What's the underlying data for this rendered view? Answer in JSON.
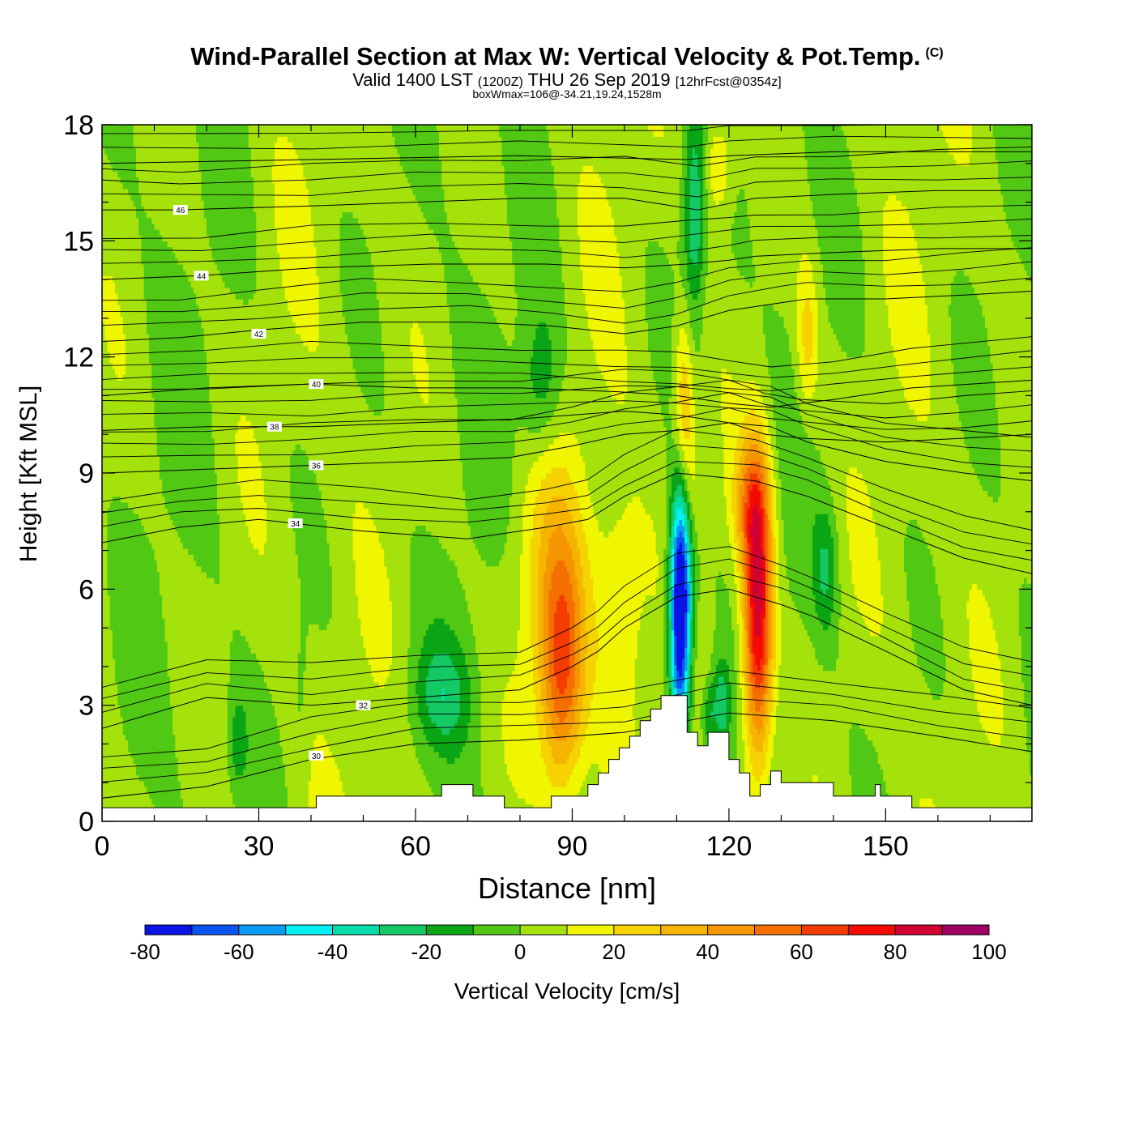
{
  "title": {
    "main": "Wind-Parallel Section at Max W: Vertical Velocity & Pot.Temp.",
    "copyright": "(C)",
    "valid_prefix": "Valid 1400 LST",
    "valid_utc": "(1200Z)",
    "valid_date": "THU 26 Sep 2019",
    "forecast_info": "[12hrFcst@0354z]",
    "box_info": "boxWmax=106@-34.21,19.24,1528m"
  },
  "chart_data": {
    "type": "heatmap",
    "xlabel": "Distance [nm]",
    "ylabel": "Height [Kft MSL]",
    "xlim": [
      0,
      178
    ],
    "ylim": [
      0,
      18
    ],
    "x_ticks": [
      0,
      30,
      60,
      90,
      120,
      150
    ],
    "y_ticks": [
      0,
      3,
      6,
      9,
      12,
      15,
      18
    ],
    "colorbar": {
      "label": "Vertical Velocity [cm/s]",
      "ticks": [
        -80,
        -60,
        -40,
        -20,
        0,
        20,
        40,
        60,
        80,
        100
      ],
      "levels": [
        -80,
        -70,
        -60,
        -50,
        -40,
        -30,
        -20,
        -10,
        0,
        10,
        20,
        30,
        40,
        50,
        60,
        70,
        80,
        90,
        100
      ],
      "colors": [
        "#0a14e6",
        "#0a55f0",
        "#0a9bf5",
        "#05f0f5",
        "#05dcaa",
        "#14c864",
        "#0aa514",
        "#50c814",
        "#a5e10a",
        "#f0f500",
        "#f5d200",
        "#f5b400",
        "#f59600",
        "#f56e00",
        "#f53c00",
        "#f50a00",
        "#d20032",
        "#a00064"
      ]
    },
    "theta_contours": [
      {
        "label": "30",
        "label_x": 41,
        "label_y": 1.7,
        "x": [
          0,
          20,
          40,
          60,
          80,
          100,
          120,
          140,
          160,
          178
        ],
        "y": [
          0.6,
          0.9,
          1.6,
          2.0,
          2.1,
          2.3,
          2.8,
          2.6,
          2.2,
          1.8
        ]
      },
      {
        "label": "32",
        "label_x": 50,
        "label_y": 3.0,
        "x": [
          0,
          20,
          40,
          60,
          80,
          90,
          95,
          100,
          110,
          120,
          130,
          136,
          150,
          165,
          178
        ],
        "y": [
          2.4,
          3.2,
          3.0,
          3.2,
          3.4,
          4.0,
          4.4,
          5.0,
          5.8,
          6.0,
          5.6,
          5.3,
          4.4,
          3.4,
          3.0
        ]
      },
      {
        "label": "34",
        "label_x": 37,
        "label_y": 7.7,
        "x": [
          0,
          15,
          30,
          50,
          70,
          85,
          93,
          100,
          110,
          125,
          135,
          150,
          165,
          178
        ],
        "y": [
          7.2,
          7.6,
          7.8,
          7.5,
          7.3,
          7.6,
          7.8,
          8.4,
          9.0,
          8.8,
          8.4,
          7.6,
          6.8,
          6.4
        ]
      },
      {
        "label": "36",
        "label_x": 41,
        "label_y": 9.2,
        "x": [
          0,
          20,
          40,
          60,
          78,
          90,
          100,
          110,
          120,
          128,
          135,
          150,
          165,
          178
        ],
        "y": [
          9.0,
          9.1,
          9.2,
          9.3,
          9.4,
          9.7,
          10.0,
          10.1,
          10.3,
          10.2,
          9.8,
          9.3,
          9.0,
          8.8
        ]
      },
      {
        "label": "38",
        "label_x": 33,
        "label_y": 10.2,
        "x": [
          0,
          20,
          40,
          60,
          80,
          100,
          110,
          120,
          127,
          134,
          150,
          165,
          178
        ],
        "y": [
          10.1,
          10.2,
          10.2,
          10.3,
          10.4,
          10.6,
          10.5,
          10.3,
          10.0,
          9.9,
          9.8,
          9.9,
          10.0
        ]
      },
      {
        "label": "40",
        "label_x": 41,
        "label_y": 11.3,
        "x": [
          0,
          20,
          40,
          60,
          80,
          99,
          110,
          120,
          128,
          140,
          155,
          178
        ],
        "y": [
          11.0,
          11.2,
          11.3,
          11.2,
          11.2,
          11.1,
          11.0,
          10.8,
          10.7,
          10.9,
          11.2,
          11.4
        ]
      },
      {
        "label": "42",
        "label_x": 30,
        "label_y": 12.6,
        "x": [
          0,
          15,
          30,
          50,
          70,
          86,
          100,
          110,
          120,
          130,
          135,
          150,
          165,
          178
        ],
        "y": [
          12.4,
          12.5,
          12.7,
          12.9,
          12.9,
          12.8,
          12.6,
          12.8,
          13.2,
          13.4,
          13.5,
          13.5,
          13.6,
          13.7
        ]
      },
      {
        "label": "44",
        "label_x": 19,
        "label_y": 14.1,
        "x": [
          0,
          19,
          40,
          63,
          85,
          100,
          112,
          120,
          125,
          140,
          160,
          178
        ],
        "y": [
          14.0,
          14.1,
          14.3,
          14.4,
          14.4,
          14.3,
          14.4,
          14.5,
          14.6,
          14.7,
          14.8,
          14.8
        ]
      },
      {
        "label": "46",
        "label_x": 15,
        "label_y": 15.8,
        "x": [
          0,
          15,
          40,
          60,
          80,
          100,
          114,
          125,
          140,
          160,
          178
        ],
        "y": [
          15.8,
          15.8,
          15.9,
          16.0,
          16.1,
          16.1,
          15.8,
          16.1,
          16.2,
          16.3,
          16.3
        ]
      },
      {
        "label": "",
        "label_x": 0,
        "label_y": 0,
        "x": [
          0,
          40,
          80,
          112,
          120,
          140,
          178
        ],
        "y": [
          17.0,
          17.1,
          17.2,
          17.1,
          17.2,
          17.3,
          17.3
        ]
      }
    ],
    "terrain": {
      "x": [
        0,
        41,
        41,
        60,
        60,
        65,
        65,
        71,
        71,
        77,
        77,
        86,
        86,
        90,
        90,
        93,
        93,
        95,
        95,
        97,
        97,
        99,
        99,
        101,
        101,
        103,
        103,
        105,
        105,
        107,
        107,
        112,
        112,
        114,
        114,
        116,
        116,
        120,
        120,
        122,
        122,
        124,
        124,
        126,
        126,
        128,
        128,
        130,
        130,
        140,
        140,
        144,
        144,
        148,
        148,
        149,
        149,
        152,
        152,
        155,
        155,
        161,
        161,
        178
      ],
      "y": [
        0.35,
        0.35,
        0.65,
        0.65,
        0.65,
        0.65,
        0.95,
        0.95,
        0.65,
        0.65,
        0.35,
        0.35,
        0.65,
        0.65,
        0.65,
        0.65,
        0.95,
        0.95,
        1.25,
        1.25,
        1.6,
        1.6,
        1.9,
        1.9,
        2.2,
        2.2,
        2.6,
        2.6,
        2.9,
        2.9,
        3.25,
        3.25,
        2.3,
        2.3,
        1.95,
        1.95,
        2.3,
        2.3,
        1.6,
        1.6,
        1.25,
        1.25,
        0.65,
        0.65,
        0.95,
        0.95,
        1.3,
        1.3,
        1.0,
        1.0,
        0.65,
        0.65,
        0.65,
        0.65,
        0.95,
        0.95,
        0.65,
        0.65,
        0.65,
        0.65,
        0.35,
        0.35,
        0.35,
        0.35
      ]
    }
  }
}
